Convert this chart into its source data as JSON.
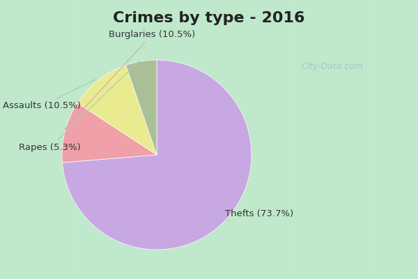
{
  "title": "Crimes by type - 2016",
  "title_fontsize": 16,
  "title_fontweight": "bold",
  "slices": [
    {
      "label": "Thefts (73.7%)",
      "value": 73.7,
      "color": "#C8A8E2"
    },
    {
      "label": "Burglaries (10.5%)",
      "value": 10.5,
      "color": "#F0A0A8"
    },
    {
      "label": "Assaults (10.5%)",
      "value": 10.5,
      "color": "#EAEA90"
    },
    {
      "label": "Rapes (5.3%)",
      "value": 5.3,
      "color": "#AABF98"
    }
  ],
  "label_fontsize": 9.5,
  "label_color": "#333333",
  "startangle": 90,
  "background_top": "#00D8EC",
  "background_main_top": "#B8E8D8",
  "background_main_bot": "#C8EAC0",
  "watermark": "City-Data.com"
}
